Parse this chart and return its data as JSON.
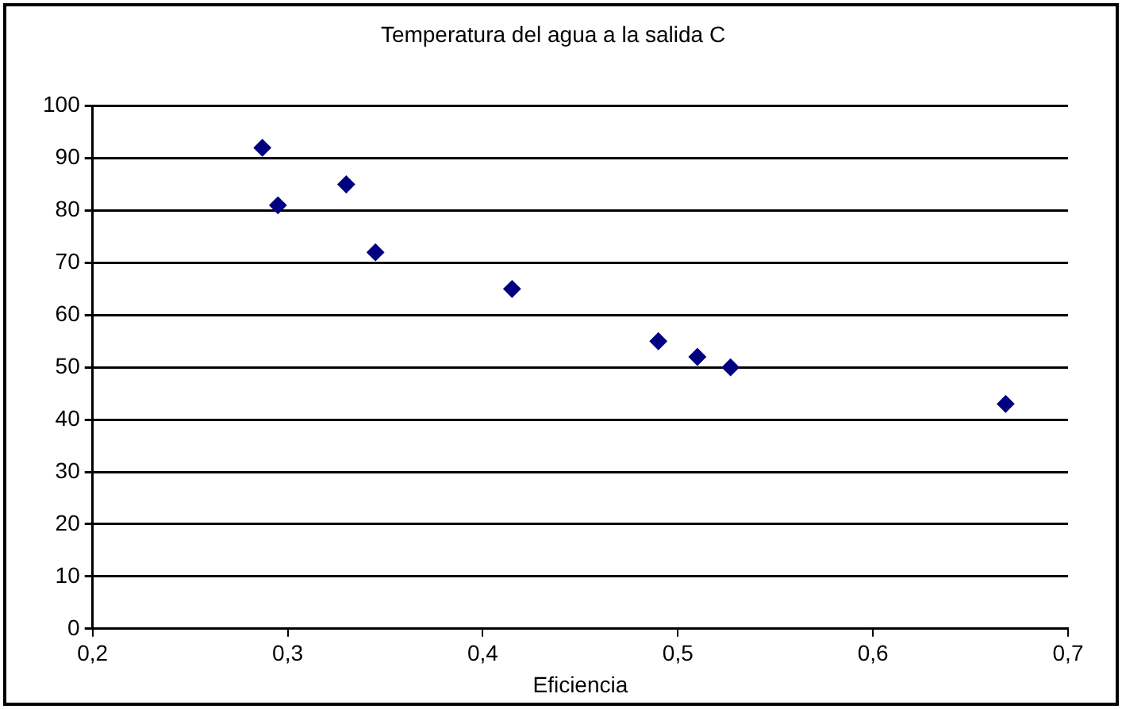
{
  "chart_data": {
    "type": "scatter",
    "title": "Temperatura del agua a la salida C",
    "xlabel": "Eficiencia",
    "x": [
      0.287,
      0.295,
      0.33,
      0.345,
      0.415,
      0.49,
      0.51,
      0.527,
      0.668
    ],
    "series": [
      {
        "color": "#000080",
        "values": [
          92,
          81,
          85,
          72,
          65,
          55,
          52,
          50,
          43
        ]
      }
    ],
    "xlim": [
      0.2,
      0.7
    ],
    "xticks": [
      {
        "value": 0.2,
        "label": "0,2"
      },
      {
        "value": 0.3,
        "label": "0,3"
      },
      {
        "value": 0.4,
        "label": "0,4"
      },
      {
        "value": 0.5,
        "label": "0,5"
      },
      {
        "value": 0.6,
        "label": "0,6"
      },
      {
        "value": 0.7,
        "label": "0,7"
      }
    ],
    "ylim": [
      0,
      100
    ],
    "yticks": [
      0,
      10,
      20,
      30,
      40,
      50,
      60,
      70,
      80,
      90,
      100
    ],
    "grid": "y",
    "legend": false,
    "marker": "diamond"
  }
}
